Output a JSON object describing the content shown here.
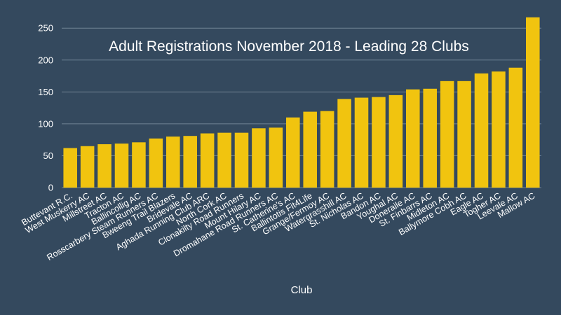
{
  "chart_data": {
    "type": "bar",
    "title": "Adult Registrations November 2018 - Leading 28 Clubs",
    "xlabel": "Club",
    "ylabel": "",
    "ylim": [
      0,
      270
    ],
    "yticks": [
      0,
      50,
      100,
      150,
      200,
      250
    ],
    "grid": true,
    "categories": [
      "Buttevant R.C.",
      "West Muskerry AC",
      "Millstreet AC",
      "Tracton AC",
      "Ballincollig AC",
      "Rosscarbery Steam Runners AC",
      "Bweeng Trail Blazers",
      "Bridevale AC",
      "Aghada Running Club ARC",
      "North Cork AC",
      "Clonakilty Road Runners",
      "Mount Hilary AC",
      "Dromahane Road Runners AC",
      "St. Catherine's AC",
      "Ballintotis Fit4Life",
      "Grange/Fermoy AC",
      "Watergrasshill AC",
      "St. Nicholas AC",
      "Bandon AC",
      "Youghal AC",
      "Doneraile AC",
      "St. Finbarrs AC",
      "Midleton AC",
      "Ballymore Cobh AC",
      "Eagle AC",
      "Togher AC",
      "Leevale AC",
      "Mallow AC"
    ],
    "values": [
      62,
      65,
      68,
      69,
      71,
      77,
      80,
      81,
      85,
      86,
      86,
      93,
      94,
      110,
      119,
      120,
      139,
      141,
      142,
      145,
      154,
      155,
      167,
      167,
      179,
      182,
      188,
      267
    ]
  },
  "colors": {
    "background": "#34495e",
    "bar": "#f1c40f",
    "grid": "#6f8394",
    "text": "#ffffff"
  }
}
